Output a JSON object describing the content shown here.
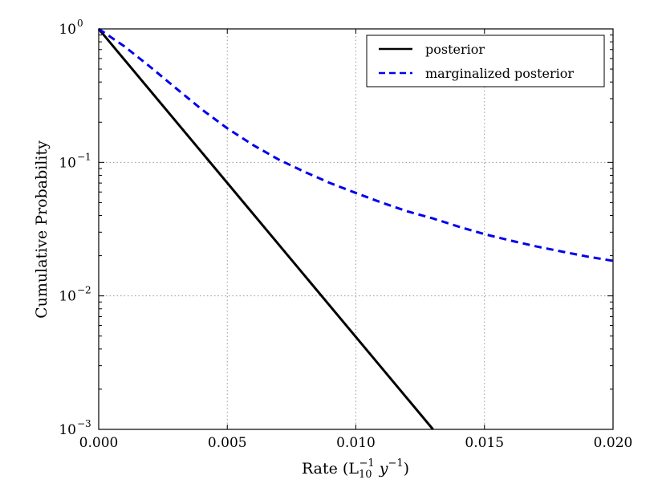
{
  "chart_data": {
    "type": "line",
    "xlabel": "Rate (L",
    "xlabel_sub": "10",
    "xlabel_sup": "−1",
    "xlabel_var": " y",
    "xlabel_var_sup": "−1",
    "xlabel_close": ")",
    "ylabel": "Cumulative Probability",
    "xlim": [
      0.0,
      0.02
    ],
    "ylim": [
      0.001,
      1
    ],
    "yscale": "log",
    "grid": true,
    "legend_position": "top-right",
    "x_ticks": [
      "0.000",
      "0.005",
      "0.010",
      "0.015",
      "0.020"
    ],
    "y_ticks": [
      {
        "value": 1,
        "base": "10",
        "exp": "0"
      },
      {
        "value": 0.1,
        "base": "10",
        "exp": "−1"
      },
      {
        "value": 0.01,
        "base": "10",
        "exp": "−2"
      },
      {
        "value": 0.001,
        "base": "10",
        "exp": "−3"
      }
    ],
    "series": [
      {
        "name": "posterior",
        "color": "#000000",
        "style": "solid",
        "x": [
          0.0,
          0.013
        ],
        "y": [
          1.0,
          0.001
        ]
      },
      {
        "name": "marginalized posterior",
        "color": "#0000ee",
        "style": "dashed",
        "x": [
          0.0,
          0.001,
          0.002,
          0.003,
          0.004,
          0.005,
          0.006,
          0.007,
          0.008,
          0.009,
          0.01,
          0.011,
          0.012,
          0.013,
          0.014,
          0.015,
          0.016,
          0.017,
          0.018,
          0.019,
          0.02
        ],
        "y": [
          1.0,
          0.74,
          0.52,
          0.36,
          0.25,
          0.18,
          0.135,
          0.105,
          0.085,
          0.07,
          0.059,
          0.05,
          0.043,
          0.038,
          0.033,
          0.029,
          0.026,
          0.0235,
          0.0215,
          0.0197,
          0.0183
        ]
      }
    ]
  }
}
